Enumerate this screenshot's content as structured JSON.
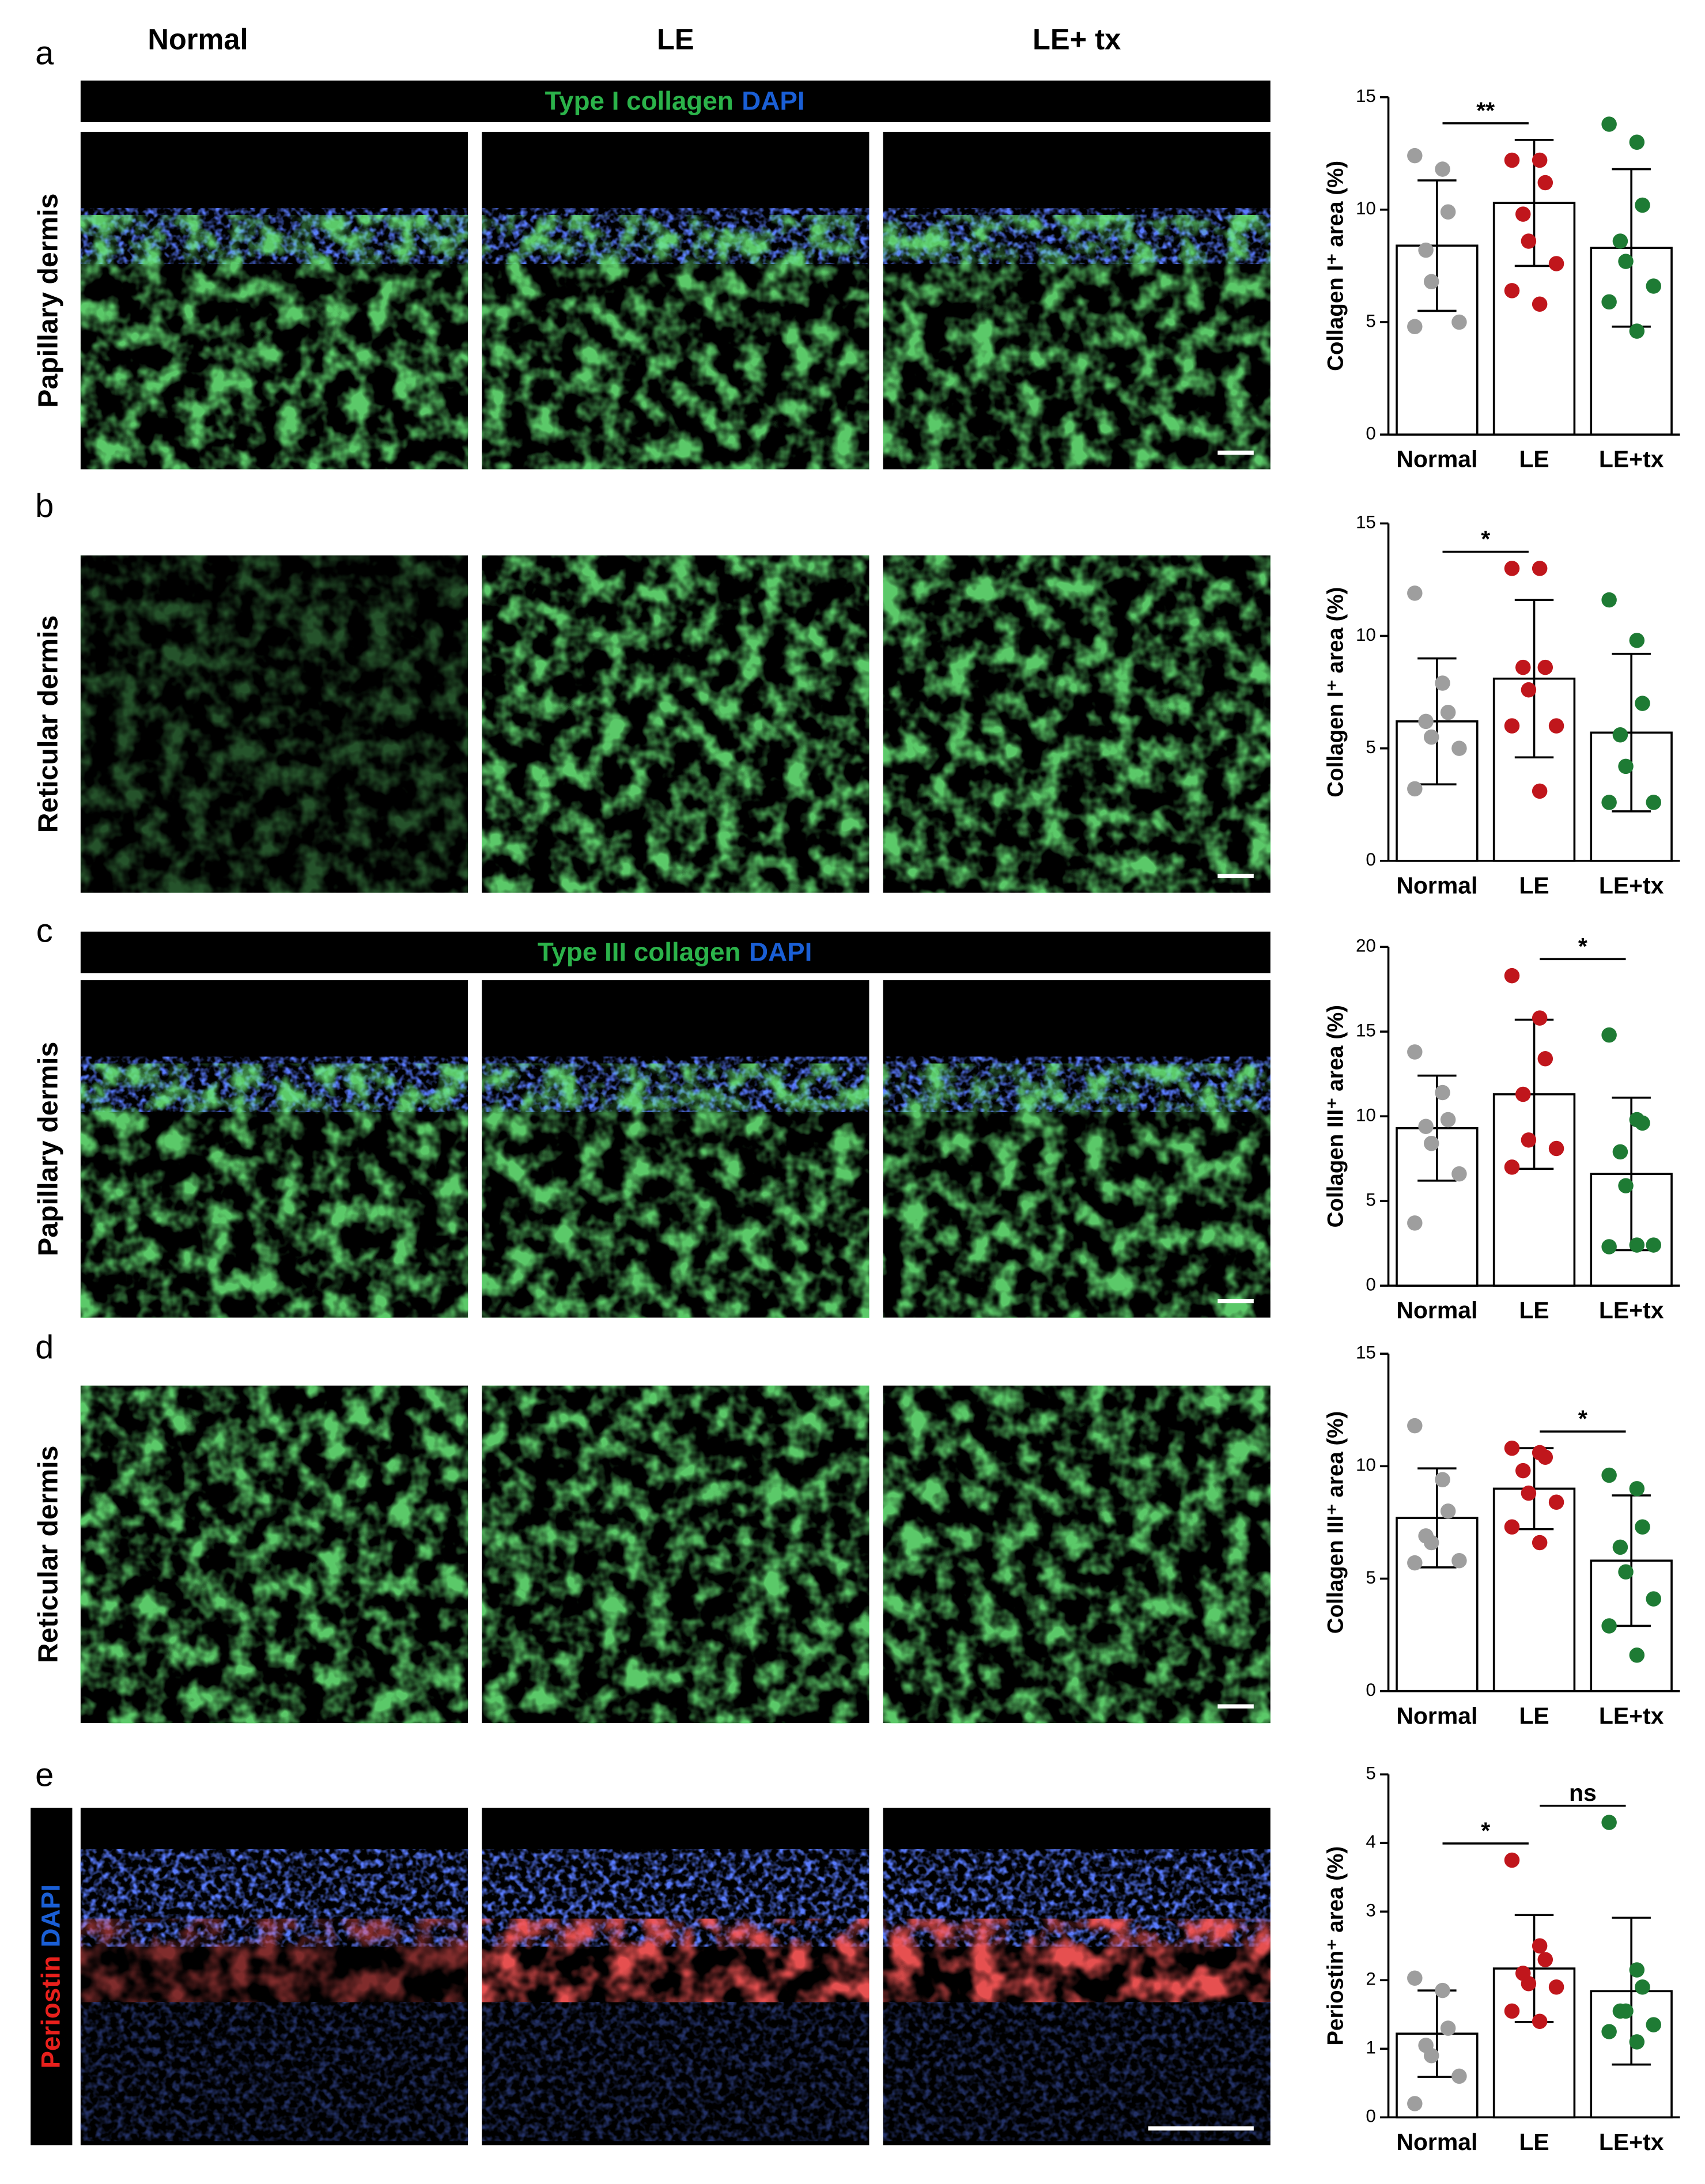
{
  "column_headers": [
    "Normal",
    "LE",
    "LE+ tx"
  ],
  "panels": [
    {
      "letter": "a",
      "row_label": "Papillary dermis",
      "stain": [
        "Type I collagen",
        "DAPI"
      ]
    },
    {
      "letter": "b",
      "row_label": "Reticular dermis"
    },
    {
      "letter": "c",
      "row_label": "Papillary dermis",
      "stain": [
        "Type III collagen",
        "DAPI"
      ]
    },
    {
      "letter": "d",
      "row_label": "Reticular dermis"
    },
    {
      "letter": "e",
      "stain": [
        "Periostin",
        "DAPI"
      ]
    }
  ],
  "chart_data": [
    {
      "type": "bar",
      "y_label": "Collagen I⁺ area (%)",
      "categories": [
        "Normal",
        "LE",
        "LE+tx"
      ],
      "values": [
        8.4,
        10.3,
        8.3
      ],
      "errors": [
        2.9,
        2.8,
        3.5
      ],
      "points": [
        [
          12.4,
          11.8,
          9.9,
          8.2,
          6.8,
          5.0,
          4.8
        ],
        [
          12.2,
          12.2,
          11.2,
          9.8,
          8.6,
          7.6,
          6.4,
          5.8
        ],
        [
          13.8,
          13.0,
          10.2,
          8.6,
          7.7,
          6.6,
          5.9,
          4.6
        ]
      ],
      "point_colors": [
        "#9e9e9e",
        "#c0161c",
        "#1e7b34"
      ],
      "color": "#ffffff",
      "ylim": [
        0,
        15
      ],
      "yticks": [
        0,
        5,
        10,
        15
      ],
      "comparisons": [
        {
          "label": "**",
          "between": [
            "Normal",
            "LE"
          ]
        }
      ]
    },
    {
      "type": "bar",
      "y_label": "Collagen I⁺ area (%)",
      "categories": [
        "Normal",
        "LE",
        "LE+tx"
      ],
      "values": [
        6.2,
        8.1,
        5.7
      ],
      "errors": [
        2.8,
        3.5,
        3.5
      ],
      "points": [
        [
          11.9,
          7.9,
          6.6,
          6.2,
          5.5,
          5.0,
          3.2
        ],
        [
          13.0,
          13.0,
          8.6,
          8.6,
          7.6,
          6.0,
          6.0,
          3.1
        ],
        [
          11.6,
          9.8,
          7.0,
          5.6,
          4.2,
          2.6,
          2.6
        ]
      ],
      "point_colors": [
        "#9e9e9e",
        "#c0161c",
        "#1e7b34"
      ],
      "color": "#ffffff",
      "ylim": [
        0,
        15
      ],
      "yticks": [
        0,
        5,
        10,
        15
      ],
      "comparisons": [
        {
          "label": "*",
          "between": [
            "Normal",
            "LE"
          ]
        }
      ]
    },
    {
      "type": "bar",
      "y_label": "Collagen III⁺ area (%)",
      "categories": [
        "Normal",
        "LE",
        "LE+tx"
      ],
      "values": [
        9.3,
        11.3,
        6.6
      ],
      "errors": [
        3.1,
        4.4,
        4.5
      ],
      "points": [
        [
          13.8,
          11.4,
          9.8,
          9.4,
          8.4,
          6.6,
          3.7
        ],
        [
          18.3,
          15.8,
          13.4,
          11.3,
          8.6,
          8.1,
          7.0
        ],
        [
          14.8,
          9.8,
          9.6,
          7.9,
          5.9,
          2.4,
          2.3,
          2.4
        ]
      ],
      "point_colors": [
        "#9e9e9e",
        "#c0161c",
        "#1e7b34"
      ],
      "color": "#ffffff",
      "ylim": [
        0,
        20
      ],
      "yticks": [
        0,
        5,
        10,
        15,
        20
      ],
      "comparisons": [
        {
          "label": "*",
          "between": [
            "LE",
            "LE+tx"
          ]
        }
      ]
    },
    {
      "type": "bar",
      "y_label": "Collagen III⁺ area (%)",
      "categories": [
        "Normal",
        "LE",
        "LE+tx"
      ],
      "values": [
        7.7,
        9.0,
        5.8
      ],
      "errors": [
        2.2,
        1.8,
        2.9
      ],
      "points": [
        [
          11.8,
          9.4,
          8.0,
          6.9,
          6.6,
          5.8,
          5.7
        ],
        [
          10.8,
          10.6,
          10.4,
          9.8,
          8.8,
          8.4,
          7.3,
          6.6
        ],
        [
          9.6,
          9.0,
          7.3,
          6.4,
          5.3,
          4.1,
          2.9,
          1.6
        ]
      ],
      "point_colors": [
        "#9e9e9e",
        "#c0161c",
        "#1e7b34"
      ],
      "color": "#ffffff",
      "ylim": [
        0,
        15
      ],
      "yticks": [
        0,
        5,
        10,
        15
      ],
      "comparisons": [
        {
          "label": "*",
          "between": [
            "LE",
            "LE+tx"
          ]
        }
      ]
    },
    {
      "type": "bar",
      "y_label": "Periostin⁺ area (%)",
      "categories": [
        "Normal",
        "LE",
        "LE+tx"
      ],
      "values": [
        1.22,
        2.17,
        1.84
      ],
      "errors": [
        0.63,
        0.78,
        1.07
      ],
      "points": [
        [
          2.03,
          1.85,
          1.3,
          1.05,
          0.9,
          0.6,
          0.2
        ],
        [
          3.75,
          2.5,
          2.3,
          2.1,
          1.95,
          1.9,
          1.55,
          1.4
        ],
        [
          4.3,
          2.15,
          1.9,
          1.55,
          1.55,
          1.35,
          1.25,
          1.1
        ]
      ],
      "point_colors": [
        "#9e9e9e",
        "#c0161c",
        "#1e7b34"
      ],
      "color": "#ffffff",
      "ylim": [
        0,
        5
      ],
      "yticks": [
        0,
        1,
        2,
        3,
        4,
        5
      ],
      "comparisons": [
        {
          "label": "*",
          "between": [
            "Normal",
            "LE"
          ]
        },
        {
          "label": "ns",
          "between": [
            "LE",
            "LE+tx"
          ]
        }
      ]
    }
  ]
}
